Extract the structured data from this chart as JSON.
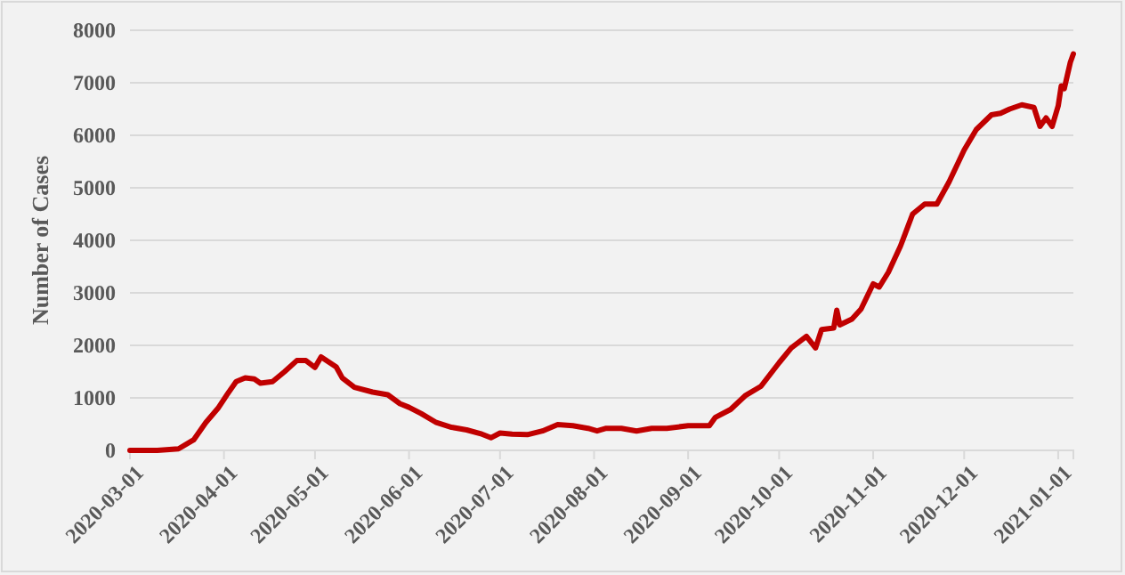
{
  "chart_data": {
    "type": "line",
    "ylabel": "Number of Cases",
    "x": [
      "2020-03-01",
      "2020-03-10",
      "2020-03-17",
      "2020-03-22",
      "2020-03-26",
      "2020-03-30",
      "2020-04-02",
      "2020-04-05",
      "2020-04-08",
      "2020-04-11",
      "2020-04-13",
      "2020-04-17",
      "2020-04-21",
      "2020-04-25",
      "2020-04-28",
      "2020-05-01",
      "2020-05-03",
      "2020-05-08",
      "2020-05-10",
      "2020-05-14",
      "2020-05-20",
      "2020-05-25",
      "2020-05-29",
      "2020-06-01",
      "2020-06-05",
      "2020-06-10",
      "2020-06-15",
      "2020-06-20",
      "2020-06-25",
      "2020-06-28",
      "2020-07-01",
      "2020-07-05",
      "2020-07-10",
      "2020-07-15",
      "2020-07-20",
      "2020-07-25",
      "2020-07-30",
      "2020-08-02",
      "2020-08-05",
      "2020-08-10",
      "2020-08-15",
      "2020-08-20",
      "2020-08-25",
      "2020-09-01",
      "2020-09-08",
      "2020-09-10",
      "2020-09-15",
      "2020-09-20",
      "2020-09-25",
      "2020-10-01",
      "2020-10-05",
      "2020-10-10",
      "2020-10-13",
      "2020-10-15",
      "2020-10-19",
      "2020-10-20",
      "2020-10-21",
      "2020-10-25",
      "2020-10-28",
      "2020-11-01",
      "2020-11-03",
      "2020-11-06",
      "2020-11-10",
      "2020-11-14",
      "2020-11-18",
      "2020-11-22",
      "2020-11-26",
      "2020-12-01",
      "2020-12-05",
      "2020-12-10",
      "2020-12-13",
      "2020-12-16",
      "2020-12-20",
      "2020-12-24",
      "2020-12-26",
      "2020-12-28",
      "2020-12-30",
      "2021-01-01",
      "2021-01-02",
      "2021-01-03",
      "2021-01-05",
      "2021-01-06"
    ],
    "series": [
      {
        "color": "#c00000",
        "values": [
          0,
          0,
          30,
          200,
          530,
          800,
          1060,
          1310,
          1380,
          1360,
          1280,
          1310,
          1500,
          1710,
          1710,
          1580,
          1780,
          1590,
          1380,
          1200,
          1110,
          1060,
          890,
          820,
          700,
          530,
          440,
          390,
          310,
          240,
          330,
          310,
          300,
          370,
          490,
          470,
          420,
          370,
          420,
          420,
          370,
          420,
          420,
          470,
          470,
          630,
          780,
          1050,
          1220,
          1670,
          1950,
          2170,
          1950,
          2300,
          2330,
          2670,
          2390,
          2500,
          2690,
          3170,
          3110,
          3390,
          3890,
          4500,
          4690,
          4690,
          5110,
          5720,
          6110,
          6390,
          6420,
          6500,
          6580,
          6530,
          6170,
          6330,
          6170,
          6560,
          6940,
          6890,
          7390,
          7550
        ]
      }
    ],
    "xlim": [
      "2020-03-01",
      "2021-01-06"
    ],
    "xticks": [
      "2020-03-01",
      "2020-04-01",
      "2020-05-01",
      "2020-06-01",
      "2020-07-01",
      "2020-08-01",
      "2020-09-01",
      "2020-10-01",
      "2020-11-01",
      "2020-12-01",
      "2021-01-01"
    ],
    "ylim": [
      0,
      8000
    ],
    "yticks": [
      0,
      1000,
      2000,
      3000,
      4000,
      5000,
      6000,
      7000,
      8000
    ],
    "grid": "y",
    "marker": "none",
    "line_style": "solid"
  }
}
